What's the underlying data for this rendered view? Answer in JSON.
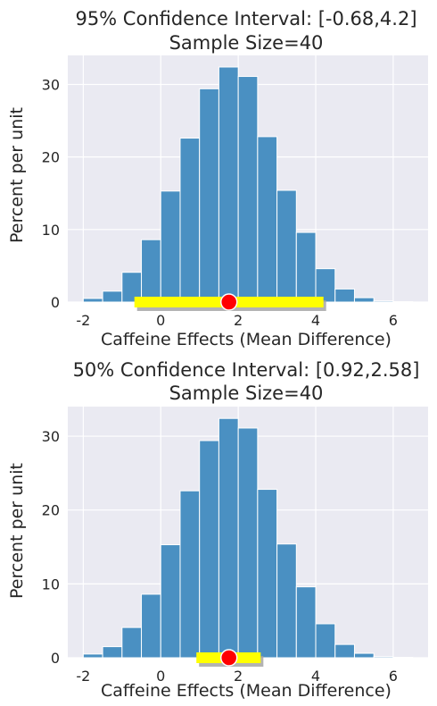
{
  "chart_data": [
    {
      "type": "bar",
      "title": "95% Confidence Interval: [-0.68,4.2]",
      "subtitle": "Sample Size=40",
      "xlabel": "Caffeine Effects (Mean Difference)",
      "ylabel": "Percent per unit",
      "xlim": [
        -2.4,
        6.9
      ],
      "ylim": [
        0,
        34
      ],
      "xticks": [
        -2,
        0,
        2,
        4,
        6
      ],
      "yticks": [
        0,
        10,
        20,
        30
      ],
      "grid": true,
      "bin_edges": [
        -2.0,
        -1.5,
        -1.0,
        -0.5,
        0.0,
        0.5,
        1.0,
        1.5,
        2.0,
        2.5,
        3.0,
        3.5,
        4.0,
        4.5,
        5.0,
        5.5,
        6.0,
        6.5
      ],
      "values": [
        0.5,
        1.5,
        4.1,
        8.6,
        15.3,
        22.6,
        29.4,
        32.4,
        31.1,
        22.8,
        15.4,
        9.6,
        4.6,
        1.8,
        0.6,
        0.15,
        0.05
      ],
      "bar_color": "#4a90c2",
      "interval": [
        -0.68,
        4.2
      ],
      "interval_color": "#ffff00",
      "point": 1.76,
      "point_color": "#ff0000"
    },
    {
      "type": "bar",
      "title": "50% Confidence Interval: [0.92,2.58]",
      "subtitle": "Sample Size=40",
      "xlabel": "Caffeine Effects (Mean Difference)",
      "ylabel": "Percent per unit",
      "xlim": [
        -2.4,
        6.9
      ],
      "ylim": [
        0,
        34
      ],
      "xticks": [
        -2,
        0,
        2,
        4,
        6
      ],
      "yticks": [
        0,
        10,
        20,
        30
      ],
      "grid": true,
      "bin_edges": [
        -2.0,
        -1.5,
        -1.0,
        -0.5,
        0.0,
        0.5,
        1.0,
        1.5,
        2.0,
        2.5,
        3.0,
        3.5,
        4.0,
        4.5,
        5.0,
        5.5,
        6.0,
        6.5
      ],
      "values": [
        0.5,
        1.5,
        4.1,
        8.6,
        15.3,
        22.6,
        29.4,
        32.4,
        31.1,
        22.8,
        15.4,
        9.6,
        4.6,
        1.8,
        0.6,
        0.15,
        0.05
      ],
      "bar_color": "#4a90c2",
      "interval": [
        0.92,
        2.58
      ],
      "interval_color": "#ffff00",
      "point": 1.76,
      "point_color": "#ff0000"
    }
  ]
}
